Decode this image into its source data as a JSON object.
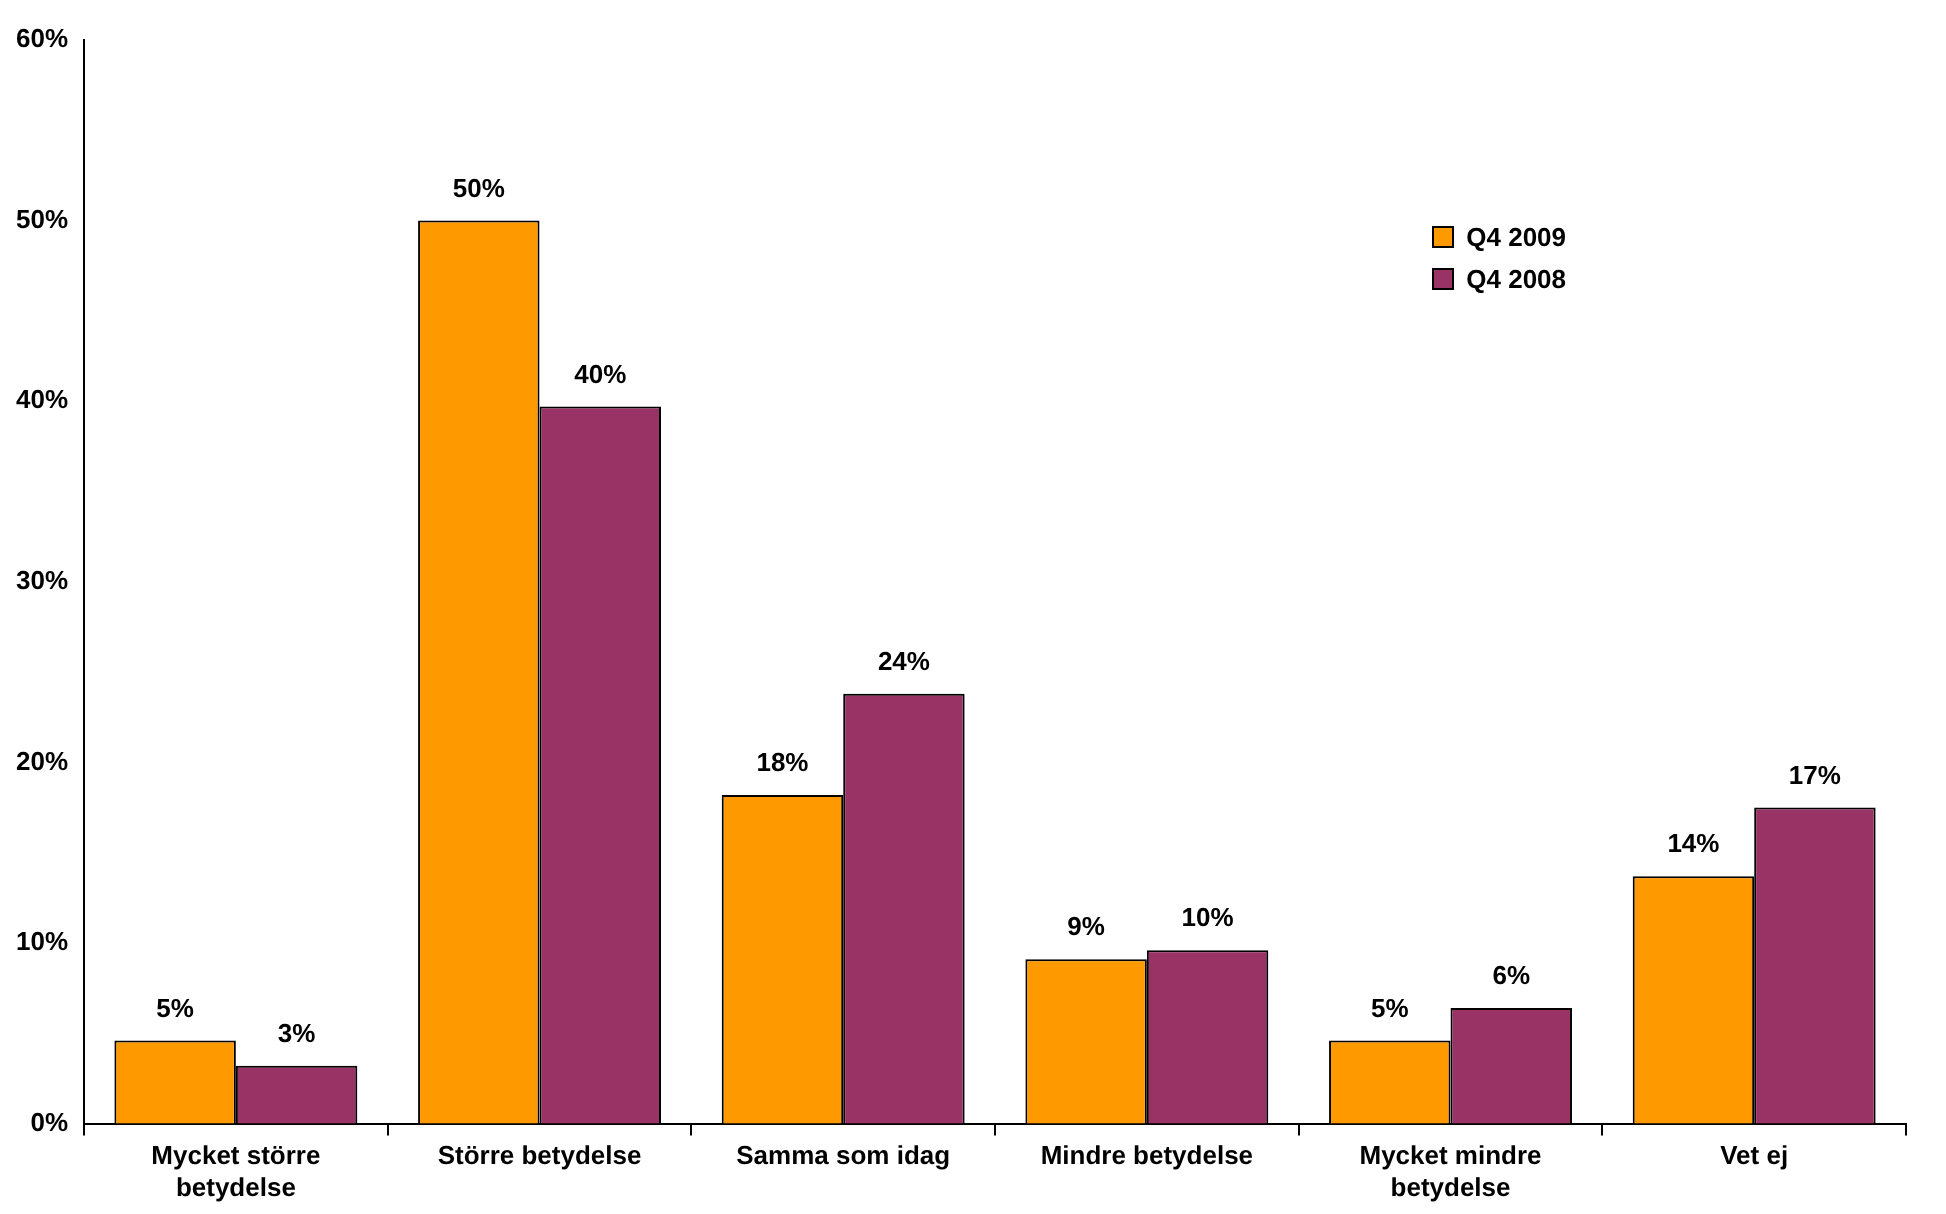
{
  "chart_data": {
    "type": "bar",
    "categories": [
      "Mycket större betydelse",
      "Större betydelse",
      "Samma som idag",
      "Mindre betydelse",
      "Mycket mindre betydelse",
      "Vet ej"
    ],
    "series": [
      {
        "name": "Q4 2009",
        "color": "#ff9900",
        "values": [
          4.6,
          50,
          18.2,
          9.1,
          4.6,
          13.7
        ],
        "value_labels": [
          "5%",
          "50%",
          "18%",
          "9%",
          "5%",
          "14%"
        ]
      },
      {
        "name": "Q4 2008",
        "color": "#993366",
        "values": [
          3.2,
          39.7,
          23.8,
          9.6,
          6.4,
          17.5
        ],
        "value_labels": [
          "3%",
          "40%",
          "24%",
          "10%",
          "6%",
          "17%"
        ]
      }
    ],
    "ylim": [
      0,
      60
    ],
    "yticks": [
      {
        "value": 0,
        "label": "0%"
      },
      {
        "value": 10,
        "label": "10%"
      },
      {
        "value": 20,
        "label": "20%"
      },
      {
        "value": 30,
        "label": "30%"
      },
      {
        "value": 40,
        "label": "40%"
      },
      {
        "value": 50,
        "label": "50%"
      },
      {
        "value": 60,
        "label": "60%"
      }
    ],
    "grid": false,
    "legend": "top right"
  }
}
